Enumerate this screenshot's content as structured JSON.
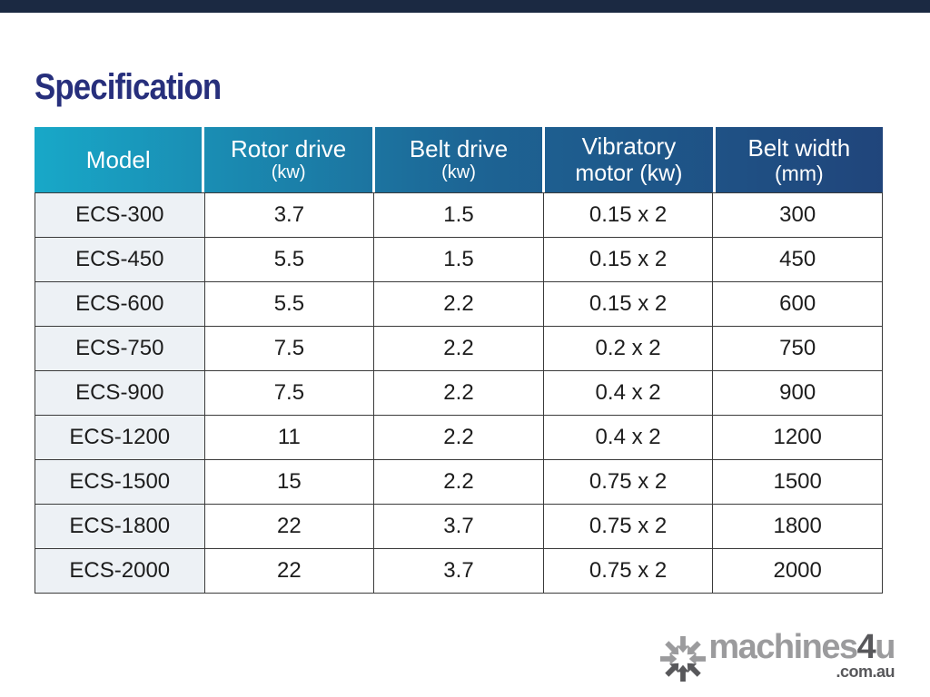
{
  "page": {
    "title": "Specification"
  },
  "colors": {
    "top_bar": "#1b2942",
    "title_blue": "#272f7c",
    "header_grad_start": "#18a8c8",
    "header_grad_mid": "#1d6494",
    "header_grad_end": "#20457b",
    "header_text": "#ffffff",
    "model_cell_bg": "#edf1f5",
    "border_dark": "#3a3a3a",
    "cell_text": "#1d1d1d",
    "logo_light_gray": "#9b9b9d",
    "logo_dark_gray": "#58585b"
  },
  "table": {
    "columns": [
      {
        "line1": "Model",
        "line2": ""
      },
      {
        "line1": "Rotor drive",
        "line2": "(kw)"
      },
      {
        "line1": "Belt drive",
        "line2": "(kw)"
      },
      {
        "line1": "Vibratory",
        "line2": "motor (kw)"
      },
      {
        "line1": "Belt width",
        "line2": "(mm)"
      }
    ],
    "rows": [
      [
        "ECS-300",
        "3.7",
        "1.5",
        "0.15 x 2",
        "300"
      ],
      [
        "ECS-450",
        "5.5",
        "1.5",
        "0.15 x 2",
        "450"
      ],
      [
        "ECS-600",
        "5.5",
        "2.2",
        "0.15 x 2",
        "600"
      ],
      [
        "ECS-750",
        "7.5",
        "2.2",
        "0.2 x 2",
        "750"
      ],
      [
        "ECS-900",
        "7.5",
        "2.2",
        "0.4 x 2",
        "900"
      ],
      [
        "ECS-1200",
        "11",
        "2.2",
        "0.4 x 2",
        "1200"
      ],
      [
        "ECS-1500",
        "15",
        "2.2",
        "0.75 x 2",
        "1500"
      ],
      [
        "ECS-1800",
        "22",
        "3.7",
        "0.75 x 2",
        "1800"
      ],
      [
        "ECS-2000",
        "22",
        "3.7",
        "0.75 x 2",
        "2000"
      ]
    ]
  },
  "branding": {
    "word_part1": "machines",
    "word_part2": "4",
    "word_part3": "u",
    "domain": ".com.au",
    "icon": "snowflake-arrows-icon"
  }
}
